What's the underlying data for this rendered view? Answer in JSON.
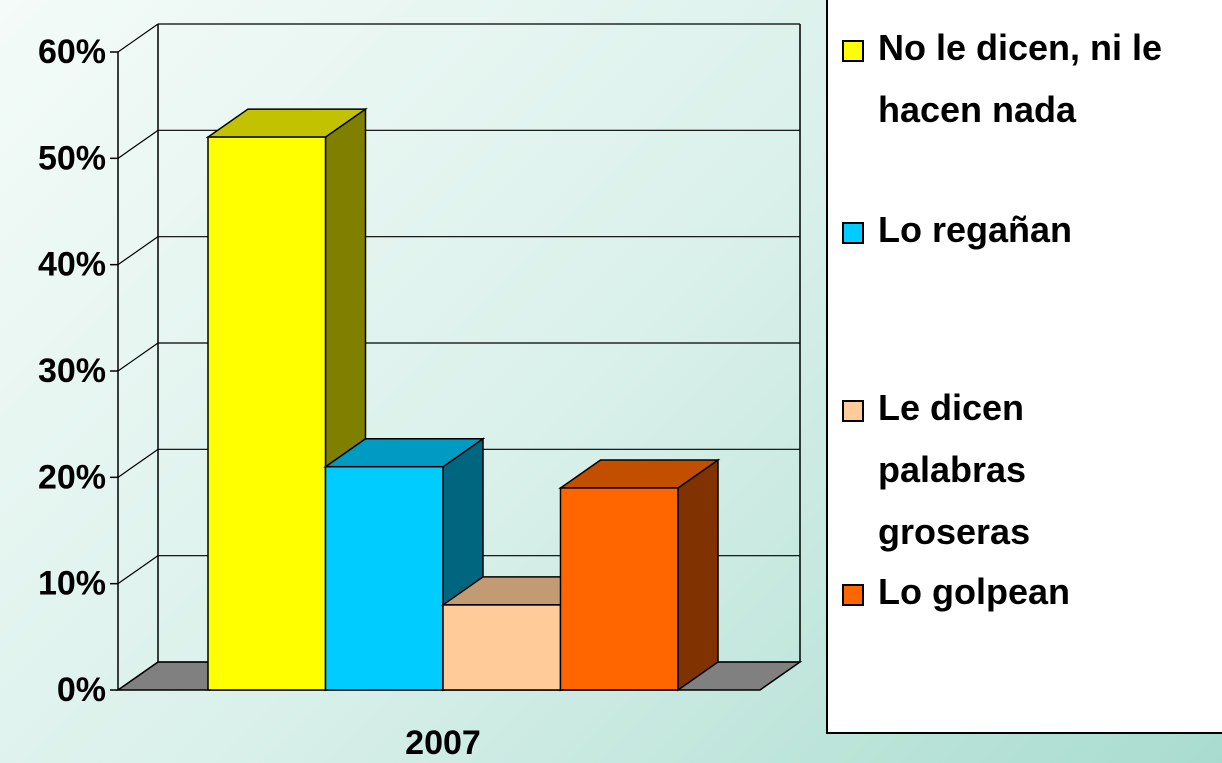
{
  "chart_data": {
    "type": "bar3d",
    "categories": [
      "2007"
    ],
    "series": [
      {
        "name": "No le dicen, ni le hacen nada",
        "color": "#ffff00",
        "values": [
          52
        ]
      },
      {
        "name": "Lo regañan",
        "color": "#00ccff",
        "values": [
          21
        ]
      },
      {
        "name": "Le dicen palabras groseras",
        "color": "#ffcc99",
        "values": [
          8
        ]
      },
      {
        "name": "Lo golpean",
        "color": "#ff6600",
        "values": [
          19
        ]
      }
    ],
    "ylim": [
      0,
      60
    ],
    "yticks": [
      {
        "value": 0,
        "label": "0%"
      },
      {
        "value": 10,
        "label": "10%"
      },
      {
        "value": 20,
        "label": "20%"
      },
      {
        "value": 30,
        "label": "30%"
      },
      {
        "value": 40,
        "label": "40%"
      },
      {
        "value": 50,
        "label": "50%"
      },
      {
        "value": 60,
        "label": "60%"
      }
    ],
    "grid": true,
    "legend": "right"
  }
}
